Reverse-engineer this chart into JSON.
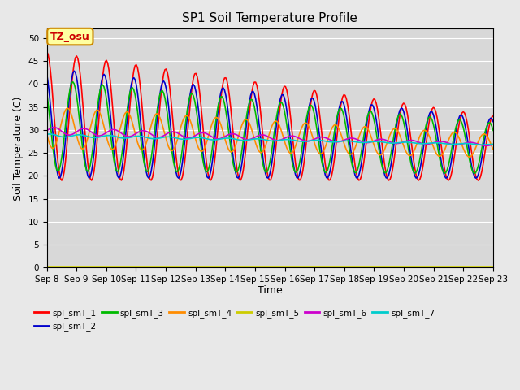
{
  "title": "SP1 Soil Temperature Profile",
  "xlabel": "Time",
  "ylabel": "Soil Temperature (C)",
  "ylim": [
    0,
    52
  ],
  "yticks": [
    0,
    5,
    10,
    15,
    20,
    25,
    30,
    35,
    40,
    45,
    50
  ],
  "series_colors": {
    "spl_smT_1": "#ff0000",
    "spl_smT_2": "#0000cd",
    "spl_smT_3": "#00bb00",
    "spl_smT_4": "#ff8c00",
    "spl_smT_5": "#cccc00",
    "spl_smT_6": "#cc00cc",
    "spl_smT_7": "#00cccc"
  },
  "annotation_text": "TZ_osu",
  "background_color": "#e8e8e8",
  "plot_bg_color": "#d8d8d8",
  "n_days": 15,
  "start_day": 8,
  "title_fontsize": 11,
  "axis_fontsize": 9,
  "tick_fontsize": 7.5
}
